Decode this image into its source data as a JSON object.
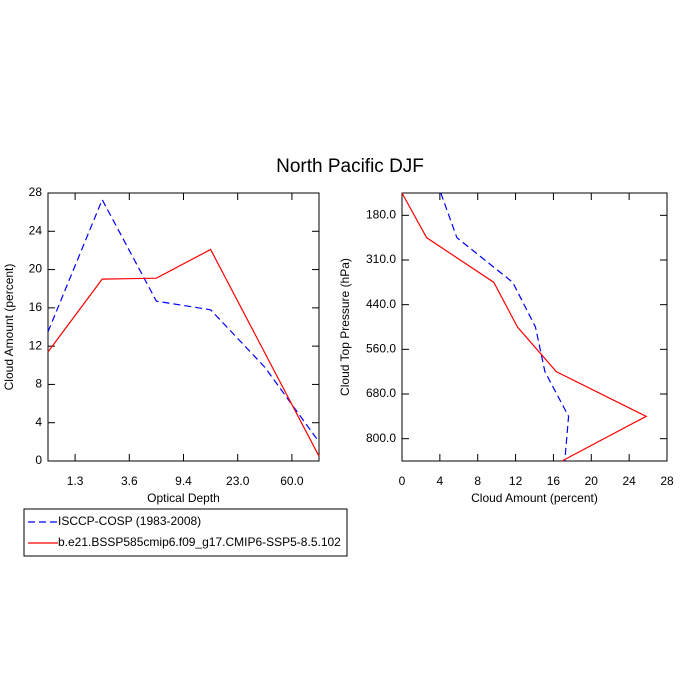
{
  "title": "North Pacific DJF",
  "chart_data": [
    {
      "type": "line",
      "xlabel": "Optical Depth",
      "ylabel": "Cloud Amount (percent)",
      "x": [
        0,
        1,
        2,
        3,
        4,
        5
      ],
      "xlim": [
        0,
        5
      ],
      "xticks": [
        {
          "value": 0.5,
          "label": "1.3"
        },
        {
          "value": 1.5,
          "label": "3.6"
        },
        {
          "value": 2.5,
          "label": "9.4"
        },
        {
          "value": 3.5,
          "label": "23.0"
        },
        {
          "value": 4.5,
          "label": "60.0"
        }
      ],
      "ylim": [
        0,
        28
      ],
      "yticks": [
        0,
        4,
        8,
        12,
        16,
        20,
        24,
        28
      ],
      "series": [
        {
          "name": "ISCCP-COSP (1983-2008)",
          "color": "#0000ff",
          "dash": true,
          "values": [
            13.5,
            27.3,
            16.7,
            15.8,
            9.8,
            2.0
          ]
        },
        {
          "name": "b.e21.BSSP585cmip6.f09_g17.CMIP6-SSP5-8.5.102",
          "color": "#ff0000",
          "dash": false,
          "values": [
            11.4,
            19.0,
            19.1,
            22.1,
            11.3,
            0.5
          ]
        }
      ]
    },
    {
      "type": "line",
      "orientation": "horizontal",
      "xlabel": "Cloud Amount (percent)",
      "ylabel": "Cloud Top Pressure (hPa)",
      "y": [
        0,
        1,
        2,
        3,
        4,
        5,
        6
      ],
      "ylim": [
        6,
        0
      ],
      "yticks": [
        {
          "value": 0.5,
          "label": "180.0"
        },
        {
          "value": 1.5,
          "label": "310.0"
        },
        {
          "value": 2.5,
          "label": "440.0"
        },
        {
          "value": 3.5,
          "label": "560.0"
        },
        {
          "value": 4.5,
          "label": "680.0"
        },
        {
          "value": 5.5,
          "label": "800.0"
        }
      ],
      "xlim": [
        0,
        28
      ],
      "xticks": [
        0,
        4,
        8,
        12,
        16,
        20,
        24,
        28
      ],
      "series": [
        {
          "color": "#0000ff",
          "dash": true,
          "values": [
            4.1,
            5.8,
            11.7,
            14.1,
            15.1,
            17.6,
            17.2
          ]
        },
        {
          "color": "#ff0000",
          "dash": false,
          "values": [
            0,
            2.6,
            9.7,
            12.2,
            16.3,
            25.8,
            16.9
          ]
        }
      ]
    }
  ]
}
